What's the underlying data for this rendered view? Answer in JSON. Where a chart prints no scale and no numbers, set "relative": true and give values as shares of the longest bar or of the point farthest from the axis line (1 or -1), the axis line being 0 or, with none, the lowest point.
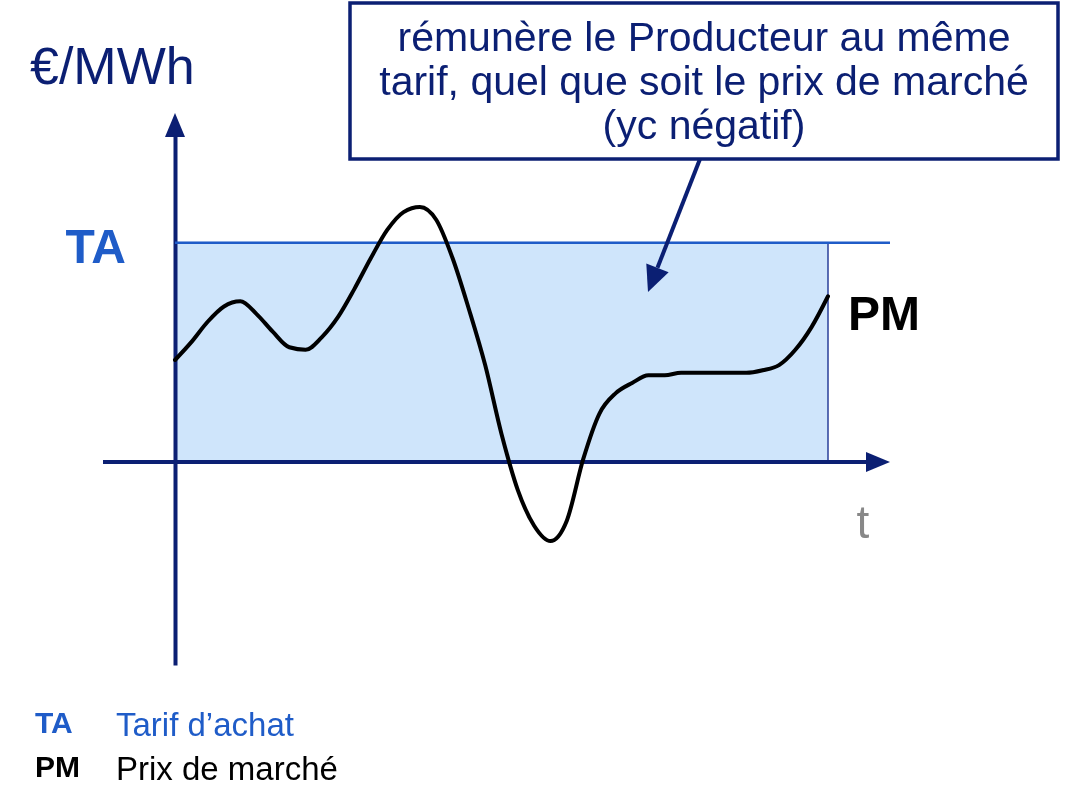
{
  "chart_data": {
    "type": "line",
    "xlabel": "t",
    "ylabel": "€/MWh",
    "relative": true,
    "categories": [
      null,
      null,
      null,
      null,
      null,
      null,
      null,
      null,
      null,
      null,
      null,
      null,
      null,
      null,
      null,
      null,
      null,
      null,
      null,
      null,
      null,
      null,
      null,
      null,
      null,
      null,
      null,
      null,
      null,
      null,
      null,
      null,
      null,
      null,
      null,
      null,
      null,
      null,
      null,
      null,
      null
    ],
    "series": [
      {
        "name": "PM",
        "color": "#000000",
        "values": [
          0.4,
          0.47,
          0.55,
          0.61,
          0.63,
          0.58,
          0.51,
          0.45,
          0.44,
          0.49,
          0.57,
          0.68,
          0.8,
          0.91,
          0.98,
          1.0,
          0.95,
          0.8,
          0.6,
          0.38,
          0.11,
          -0.11,
          -0.25,
          -0.31,
          -0.23,
          0.01,
          0.19,
          0.27,
          0.31,
          0.34,
          0.34,
          0.35,
          0.35,
          0.35,
          0.35,
          0.35,
          0.36,
          0.38,
          0.44,
          0.53,
          0.65
        ]
      }
    ],
    "ref_lines": [
      {
        "axis": "y",
        "value": 0.86,
        "label": "TA",
        "color": "#1f5cc8"
      },
      {
        "axis": "y",
        "value": 0,
        "color": "#0b1f73"
      }
    ],
    "bands": [
      {
        "axis": "y",
        "from": 0,
        "to": 0.86,
        "color": "#cfe5fb"
      }
    ],
    "annotations": [
      "rémunère le Producteur au même tarif, quel que soit le prix de marché (yc négatif)",
      "TA Tarif d’achat",
      "PM Prix de marché"
    ]
  }
}
